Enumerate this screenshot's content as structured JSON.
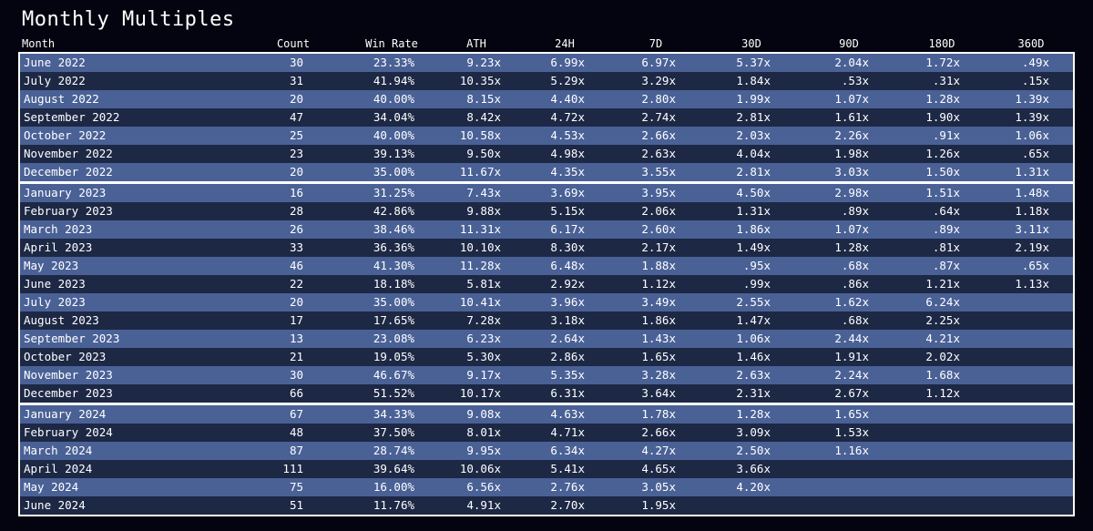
{
  "title": "Monthly Multiples",
  "columns": [
    "Month",
    "Count",
    "Win Rate",
    "ATH",
    "24H",
    "7D",
    "30D",
    "90D",
    "180D",
    "360D"
  ],
  "colors": {
    "background": "#03040f",
    "row_light": "#4a6196",
    "row_dark": "#1d2845",
    "border": "#ffffff"
  },
  "chart_data": {
    "type": "table",
    "title": "Monthly Multiples",
    "columns": [
      "Month",
      "Count",
      "Win Rate",
      "ATH",
      "24H",
      "7D",
      "30D",
      "90D",
      "180D",
      "360D"
    ],
    "groups": [
      {
        "rows": [
          [
            "June 2022",
            "30",
            "23.33%",
            "9.23x",
            "6.99x",
            "6.97x",
            "5.37x",
            "2.04x",
            "1.72x",
            ".49x"
          ],
          [
            "July 2022",
            "31",
            "41.94%",
            "10.35x",
            "5.29x",
            "3.29x",
            "1.84x",
            ".53x",
            ".31x",
            ".15x"
          ],
          [
            "August 2022",
            "20",
            "40.00%",
            "8.15x",
            "4.40x",
            "2.80x",
            "1.99x",
            "1.07x",
            "1.28x",
            "1.39x"
          ],
          [
            "September 2022",
            "47",
            "34.04%",
            "8.42x",
            "4.72x",
            "2.74x",
            "2.81x",
            "1.61x",
            "1.90x",
            "1.39x"
          ],
          [
            "October 2022",
            "25",
            "40.00%",
            "10.58x",
            "4.53x",
            "2.66x",
            "2.03x",
            "2.26x",
            ".91x",
            "1.06x"
          ],
          [
            "November 2022",
            "23",
            "39.13%",
            "9.50x",
            "4.98x",
            "2.63x",
            "4.04x",
            "1.98x",
            "1.26x",
            ".65x"
          ],
          [
            "December 2022",
            "20",
            "35.00%",
            "11.67x",
            "4.35x",
            "3.55x",
            "2.81x",
            "3.03x",
            "1.50x",
            "1.31x"
          ]
        ]
      },
      {
        "rows": [
          [
            "January 2023",
            "16",
            "31.25%",
            "7.43x",
            "3.69x",
            "3.95x",
            "4.50x",
            "2.98x",
            "1.51x",
            "1.48x"
          ],
          [
            "February 2023",
            "28",
            "42.86%",
            "9.88x",
            "5.15x",
            "2.06x",
            "1.31x",
            ".89x",
            ".64x",
            "1.18x"
          ],
          [
            "March 2023",
            "26",
            "38.46%",
            "11.31x",
            "6.17x",
            "2.60x",
            "1.86x",
            "1.07x",
            ".89x",
            "3.11x"
          ],
          [
            "April 2023",
            "33",
            "36.36%",
            "10.10x",
            "8.30x",
            "2.17x",
            "1.49x",
            "1.28x",
            ".81x",
            "2.19x"
          ],
          [
            "May 2023",
            "46",
            "41.30%",
            "11.28x",
            "6.48x",
            "1.88x",
            ".95x",
            ".68x",
            ".87x",
            ".65x"
          ],
          [
            "June 2023",
            "22",
            "18.18%",
            "5.81x",
            "2.92x",
            "1.12x",
            ".99x",
            ".86x",
            "1.21x",
            "1.13x"
          ],
          [
            "July 2023",
            "20",
            "35.00%",
            "10.41x",
            "3.96x",
            "3.49x",
            "2.55x",
            "1.62x",
            "6.24x",
            ""
          ],
          [
            "August 2023",
            "17",
            "17.65%",
            "7.28x",
            "3.18x",
            "1.86x",
            "1.47x",
            ".68x",
            "2.25x",
            ""
          ],
          [
            "September 2023",
            "13",
            "23.08%",
            "6.23x",
            "2.64x",
            "1.43x",
            "1.06x",
            "2.44x",
            "4.21x",
            ""
          ],
          [
            "October 2023",
            "21",
            "19.05%",
            "5.30x",
            "2.86x",
            "1.65x",
            "1.46x",
            "1.91x",
            "2.02x",
            ""
          ],
          [
            "November 2023",
            "30",
            "46.67%",
            "9.17x",
            "5.35x",
            "3.28x",
            "2.63x",
            "2.24x",
            "1.68x",
            ""
          ],
          [
            "December 2023",
            "66",
            "51.52%",
            "10.17x",
            "6.31x",
            "3.64x",
            "2.31x",
            "2.67x",
            "1.12x",
            ""
          ]
        ]
      },
      {
        "rows": [
          [
            "January 2024",
            "67",
            "34.33%",
            "9.08x",
            "4.63x",
            "1.78x",
            "1.28x",
            "1.65x",
            "",
            ""
          ],
          [
            "February 2024",
            "48",
            "37.50%",
            "8.01x",
            "4.71x",
            "2.66x",
            "3.09x",
            "1.53x",
            "",
            ""
          ],
          [
            "March 2024",
            "87",
            "28.74%",
            "9.95x",
            "6.34x",
            "4.27x",
            "2.50x",
            "1.16x",
            "",
            ""
          ],
          [
            "April 2024",
            "111",
            "39.64%",
            "10.06x",
            "5.41x",
            "4.65x",
            "3.66x",
            "",
            "",
            ""
          ],
          [
            "May 2024",
            "75",
            "16.00%",
            "6.56x",
            "2.76x",
            "3.05x",
            "4.20x",
            "",
            "",
            ""
          ],
          [
            "June 2024",
            "51",
            "11.76%",
            "4.91x",
            "2.70x",
            "1.95x",
            "",
            "",
            "",
            ""
          ]
        ]
      }
    ]
  }
}
